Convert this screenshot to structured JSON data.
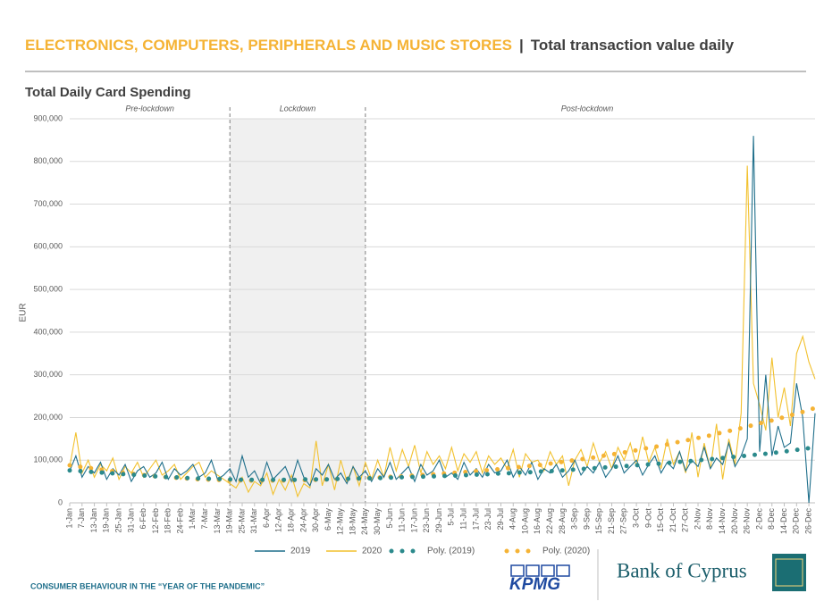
{
  "header": {
    "title_main": "ELECTRONICS, COMPUTERS, PERIPHERALS AND MUSIC STORES",
    "separator": "|",
    "title_sub": "Total transaction value daily"
  },
  "chart_data": {
    "type": "line",
    "title": "Total Daily Card Spending",
    "y_label": "EUR",
    "ylim": [
      0,
      900000
    ],
    "yticks": [
      0,
      {
        "value": 100000,
        "label": "100,000"
      },
      {
        "value": 200000,
        "label": "200,000"
      },
      {
        "value": 300000,
        "label": "300,000"
      },
      {
        "value": 400000,
        "label": "400,000"
      },
      {
        "value": 500000,
        "label": "500,000"
      },
      {
        "value": 600000,
        "label": "600,000"
      },
      {
        "value": 700000,
        "label": "700,000"
      },
      {
        "value": 800000,
        "label": "800,000"
      },
      {
        "value": 900000,
        "label": "900,000"
      }
    ],
    "grid": true,
    "legend": "bottom",
    "regions": [
      {
        "label": "Pre-lockdown",
        "start": "1-Jan",
        "end": "19-Mar",
        "shaded": false
      },
      {
        "label": "Lockdown",
        "start": "19-Mar",
        "end": "24-May",
        "shaded": true
      },
      {
        "label": "Post-lockdown",
        "start": "24-May",
        "end": "26-Dec",
        "shaded": false
      }
    ],
    "categories": [
      "1-Jan",
      null,
      "7-Jan",
      null,
      "13-Jan",
      null,
      "19-Jan",
      null,
      "25-Jan",
      null,
      "31-Jan",
      null,
      "6-Feb",
      null,
      "12-Feb",
      null,
      "18-Feb",
      null,
      "24-Feb",
      null,
      "1-Mar",
      null,
      "7-Mar",
      null,
      "13-Mar",
      null,
      "19-Mar",
      null,
      "25-Mar",
      null,
      "31-Mar",
      null,
      "6-Apr",
      null,
      "12-Apr",
      null,
      "18-Apr",
      null,
      "24-Apr",
      null,
      "30-Apr",
      null,
      "6-May",
      null,
      "12-May",
      null,
      "18-May",
      null,
      "24-May",
      null,
      "30-May",
      null,
      "5-Jun",
      null,
      "11-Jun",
      null,
      "17-Jun",
      null,
      "23-Jun",
      null,
      "29-Jun",
      null,
      "5-Jul",
      null,
      "11-Jul",
      null,
      "17-Jul",
      null,
      "23-Jul",
      null,
      "29-Jul",
      null,
      "4-Aug",
      null,
      "10-Aug",
      null,
      "16-Aug",
      null,
      "22-Aug",
      null,
      "28-Aug",
      null,
      "3-Sep",
      null,
      "9-Sep",
      null,
      "15-Sep",
      null,
      "21-Sep",
      null,
      "27-Sep",
      null,
      "3-Oct",
      null,
      "9-Oct",
      null,
      "15-Oct",
      null,
      "21-Oct",
      null,
      "27-Oct",
      null,
      "2-Nov",
      null,
      "8-Nov",
      null,
      "14-Nov",
      null,
      "20-Nov",
      null,
      "26-Nov",
      null,
      "2-Dec",
      null,
      "8-Dec",
      null,
      "14-Dec",
      null,
      "20-Dec",
      null,
      "26-Dec",
      null
    ],
    "series": [
      {
        "name": "2019",
        "color": "#1f6f8b",
        "style": "solid",
        "values": [
          75000,
          110000,
          60000,
          85000,
          70000,
          95000,
          55000,
          80000,
          65000,
          90000,
          50000,
          75000,
          85000,
          60000,
          70000,
          95000,
          55000,
          80000,
          65000,
          75000,
          90000,
          60000,
          70000,
          100000,
          55000,
          65000,
          80000,
          50000,
          110000,
          60000,
          75000,
          45000,
          95000,
          55000,
          70000,
          85000,
          50000,
          100000,
          60000,
          40000,
          80000,
          65000,
          90000,
          55000,
          70000,
          45000,
          85000,
          60000,
          75000,
          50000,
          80000,
          60000,
          95000,
          55000,
          70000,
          85000,
          50000,
          90000,
          65000,
          75000,
          100000,
          60000,
          70000,
          55000,
          95000,
          65000,
          80000,
          60000,
          90000,
          70000,
          75000,
          100000,
          60000,
          85000,
          65000,
          95000,
          55000,
          80000,
          70000,
          90000,
          60000,
          75000,
          100000,
          65000,
          85000,
          70000,
          95000,
          60000,
          80000,
          110000,
          70000,
          85000,
          100000,
          65000,
          90000,
          110000,
          70000,
          95000,
          80000,
          120000,
          75000,
          100000,
          85000,
          130000,
          80000,
          105000,
          90000,
          140000,
          85000,
          110000,
          150000,
          860000,
          120000,
          300000,
          110000,
          180000,
          130000,
          140000,
          280000,
          200000,
          0,
          210000
        ]
      },
      {
        "name": "2020",
        "color": "#f2c12e",
        "style": "solid",
        "values": [
          85000,
          165000,
          70000,
          100000,
          60000,
          90000,
          75000,
          105000,
          55000,
          85000,
          70000,
          95000,
          60000,
          80000,
          100000,
          65000,
          75000,
          90000,
          55000,
          70000,
          85000,
          95000,
          60000,
          75000,
          65000,
          55000,
          45000,
          35000,
          60000,
          25000,
          50000,
          40000,
          70000,
          20000,
          55000,
          30000,
          65000,
          15000,
          45000,
          35000,
          145000,
          40000,
          90000,
          30000,
          100000,
          50000,
          85000,
          40000,
          95000,
          55000,
          100000,
          60000,
          130000,
          75000,
          125000,
          85000,
          135000,
          70000,
          120000,
          90000,
          110000,
          80000,
          130000,
          75000,
          115000,
          95000,
          120000,
          70000,
          110000,
          90000,
          105000,
          80000,
          125000,
          60000,
          115000,
          95000,
          100000,
          75000,
          120000,
          90000,
          110000,
          40000,
          100000,
          125000,
          85000,
          140000,
          95000,
          120000,
          80000,
          130000,
          100000,
          140000,
          85000,
          155000,
          95000,
          130000,
          80000,
          150000,
          90000,
          120000,
          70000,
          165000,
          60000,
          140000,
          80000,
          185000,
          55000,
          150000,
          90000,
          210000,
          790000,
          280000,
          230000,
          170000,
          340000,
          200000,
          270000,
          180000,
          350000,
          390000,
          330000,
          290000
        ]
      },
      {
        "name": "Poly. (2019)",
        "color": "#2b8a8c",
        "style": "dotted",
        "values": [
          76000,
          75000,
          74000,
          73000,
          72000,
          71000,
          70000,
          69000,
          68000,
          67000,
          66000,
          65000,
          64000,
          63000,
          62000,
          61000,
          60000,
          60000,
          59000,
          58000,
          58000,
          57000,
          57000,
          56000,
          56000,
          55000,
          55000,
          55000,
          54000,
          54000,
          54000,
          54000,
          54000,
          54000,
          54000,
          54000,
          54000,
          54000,
          55000,
          55000,
          55000,
          55000,
          55000,
          56000,
          56000,
          56000,
          57000,
          57000,
          57000,
          58000,
          58000,
          58000,
          59000,
          59000,
          60000,
          60000,
          61000,
          61000,
          62000,
          62000,
          63000,
          63000,
          64000,
          64000,
          65000,
          65000,
          66000,
          67000,
          67000,
          68000,
          69000,
          69000,
          70000,
          71000,
          71000,
          72000,
          73000,
          74000,
          74000,
          75000,
          76000,
          77000,
          78000,
          79000,
          80000,
          81000,
          82000,
          83000,
          84000,
          85000,
          86000,
          87000,
          88000,
          89000,
          90000,
          91000,
          92000,
          93000,
          95000,
          96000,
          97000,
          98000,
          100000,
          101000,
          102000,
          104000,
          105000,
          106000,
          108000,
          109000,
          111000,
          112000,
          114000,
          115000,
          117000,
          118000,
          120000,
          122000,
          124000,
          126000,
          128000,
          130000
        ]
      },
      {
        "name": "Poly. (2020)",
        "color": "#f5b335",
        "style": "dotted",
        "values": [
          88000,
          86000,
          84000,
          82000,
          80000,
          78000,
          76000,
          74000,
          72000,
          70000,
          68000,
          67000,
          65000,
          64000,
          62000,
          61000,
          60000,
          59000,
          58000,
          57000,
          56000,
          55000,
          55000,
          54000,
          54000,
          53000,
          53000,
          53000,
          52000,
          52000,
          52000,
          52000,
          52000,
          52000,
          52000,
          52000,
          53000,
          53000,
          53000,
          54000,
          54000,
          54000,
          55000,
          55000,
          56000,
          56000,
          57000,
          57000,
          58000,
          59000,
          59000,
          60000,
          61000,
          61000,
          62000,
          63000,
          64000,
          65000,
          66000,
          67000,
          68000,
          69000,
          70000,
          71000,
          72000,
          73000,
          74000,
          75000,
          77000,
          78000,
          79000,
          81000,
          82000,
          84000,
          85000,
          87000,
          88000,
          90000,
          92000,
          94000,
          96000,
          98000,
          100000,
          102000,
          104000,
          106000,
          109000,
          111000,
          113000,
          116000,
          118000,
          121000,
          123000,
          126000,
          129000,
          131000,
          134000,
          137000,
          140000,
          143000,
          146000,
          149000,
          152000,
          155000,
          158000,
          162000,
          165000,
          168000,
          172000,
          175000,
          179000,
          182000,
          186000,
          190000,
          193000,
          197000,
          201000,
          205000,
          209000,
          213000,
          218000,
          222000
        ]
      }
    ]
  },
  "footer": {
    "caption": "CONSUMER BEHAVIOUR IN THE “YEAR OF THE PANDEMIC”",
    "logo_left": "KPMG",
    "logo_right": "Bank of Cyprus"
  }
}
